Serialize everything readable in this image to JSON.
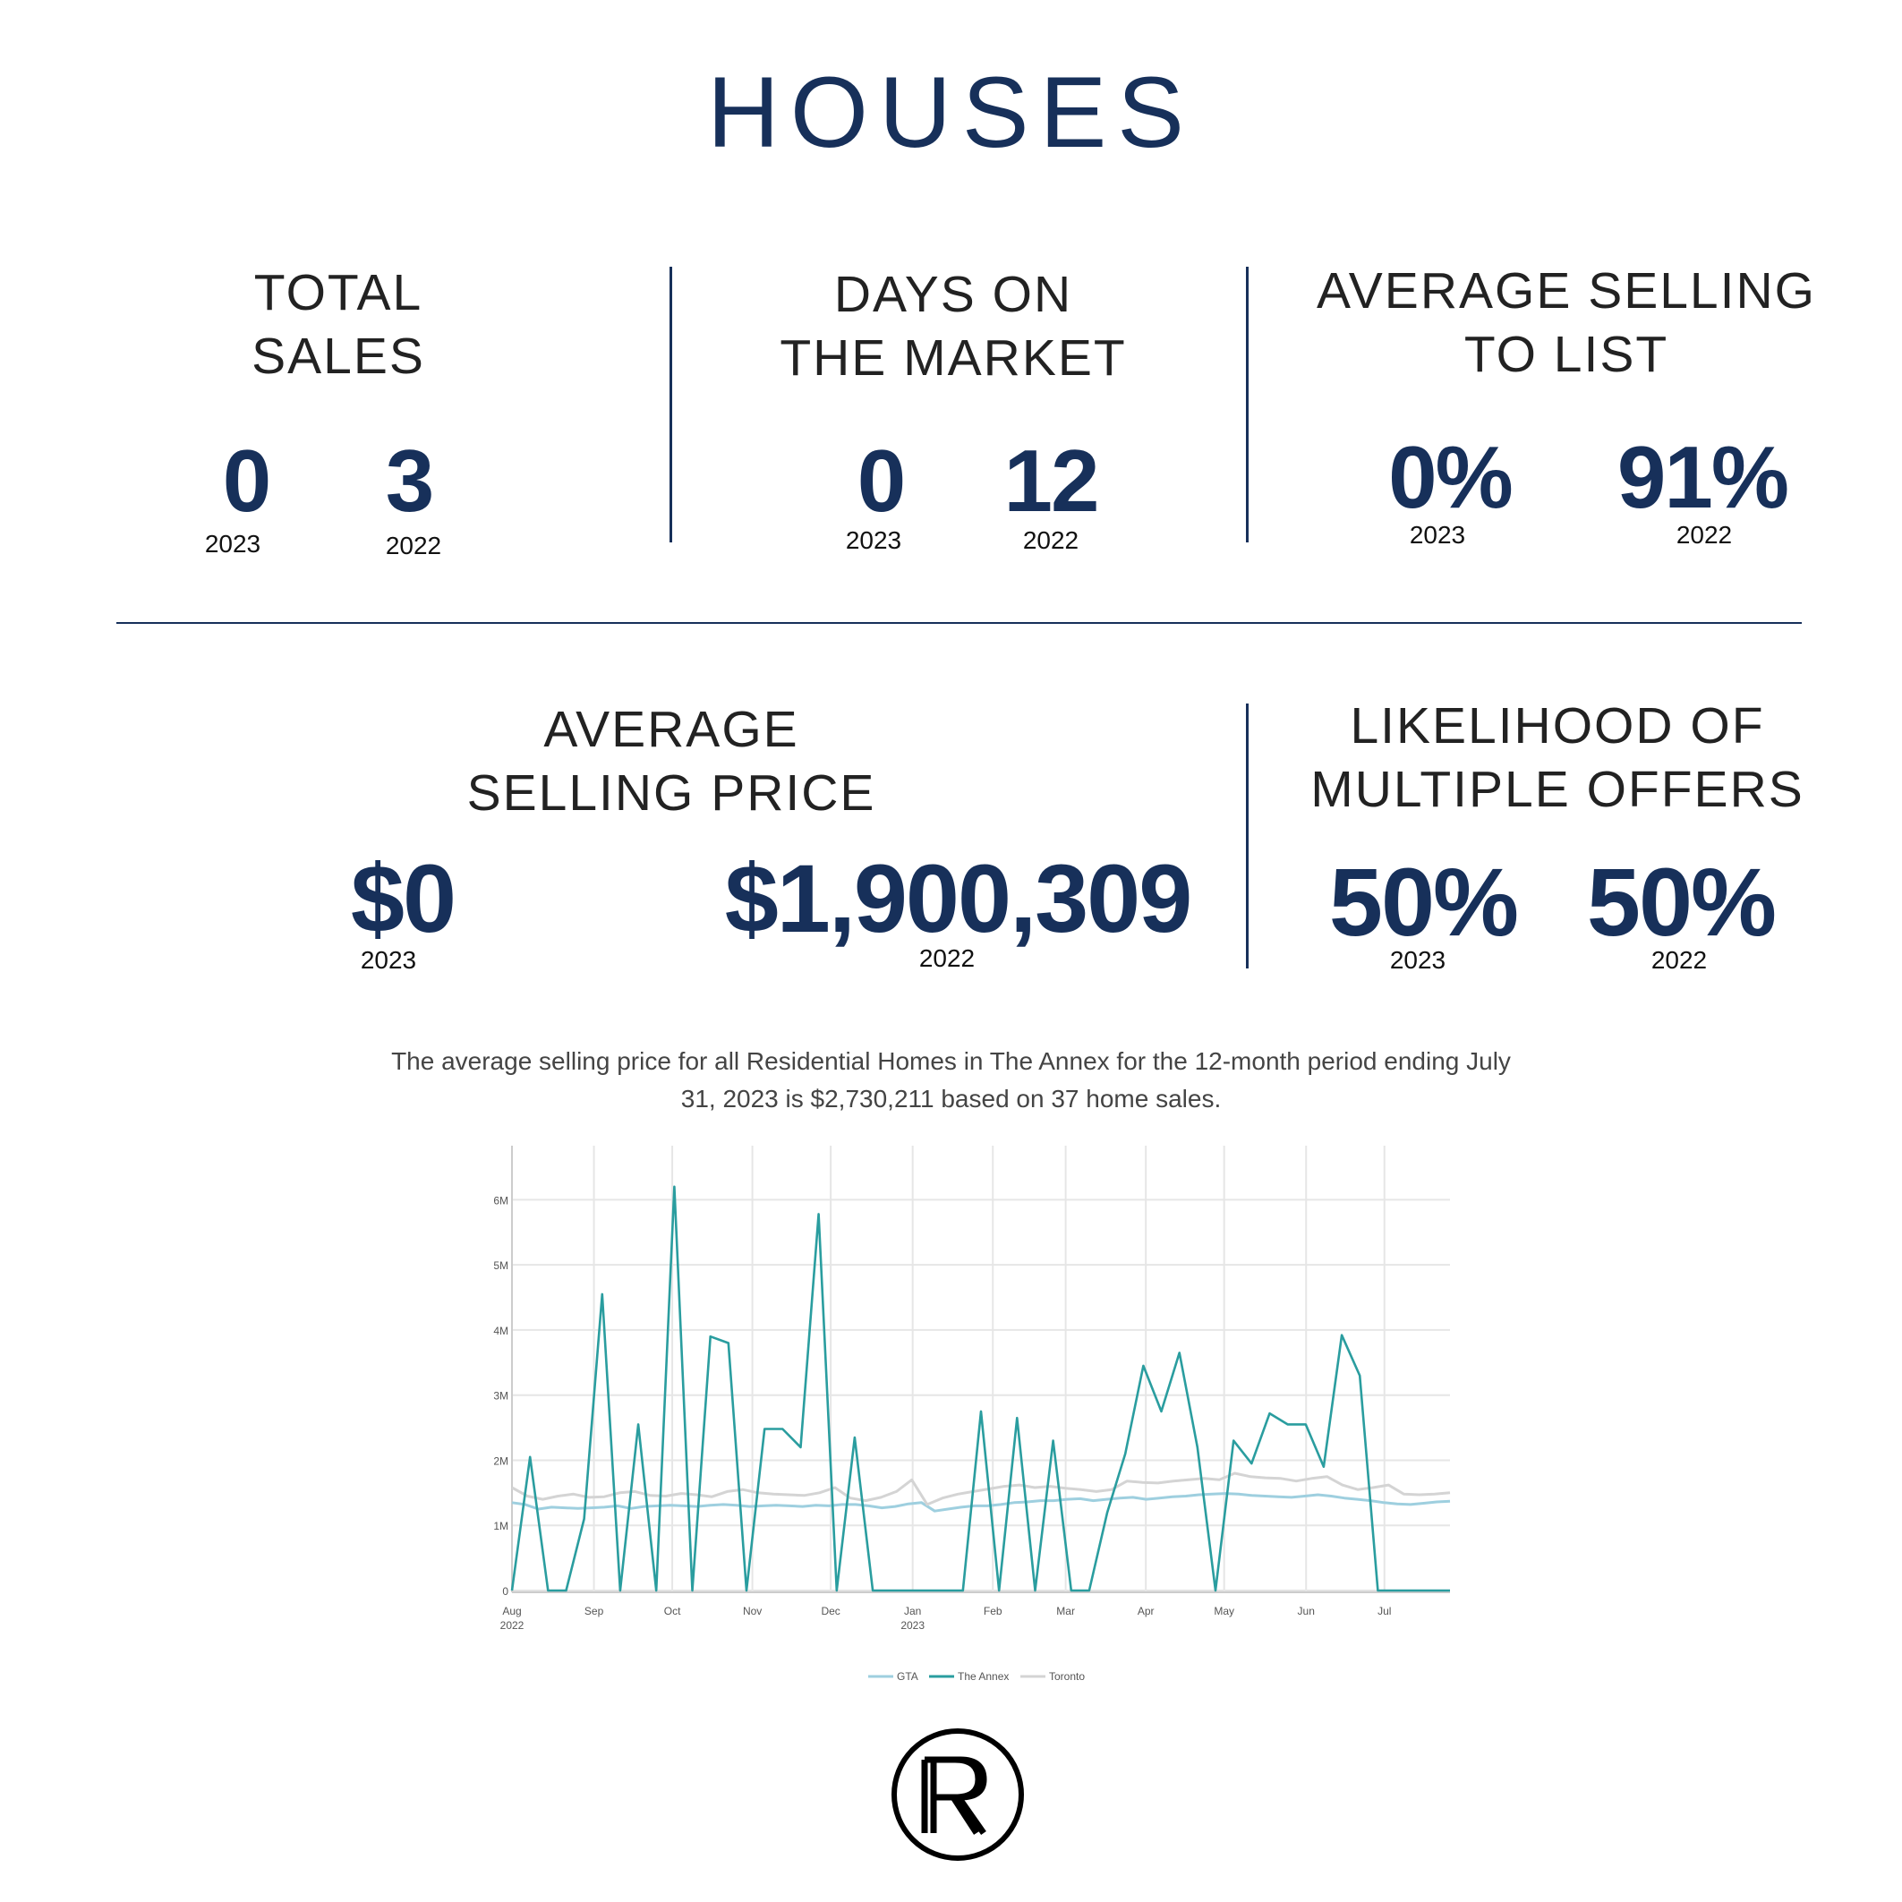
{
  "page_title": "HOUSES",
  "stats": {
    "total_sales": {
      "label": "TOTAL\nSALES",
      "v2023": "0",
      "v2022": "3",
      "y2023": "2023",
      "y2022": "2022"
    },
    "days_on_market": {
      "label": "DAYS ON\nTHE MARKET",
      "v2023": "0",
      "v2022": "12",
      "y2023": "2023",
      "y2022": "2022"
    },
    "selling_to_list": {
      "label": "AVERAGE SELLING\nTO LIST",
      "v2023": "0%",
      "v2022": "91%",
      "y2023": "2023",
      "y2022": "2022"
    },
    "avg_selling_price": {
      "label": "AVERAGE\nSELLING PRICE",
      "v2023": "$0",
      "v2022": "$1,900,309",
      "y2023": "2023",
      "y2022": "2022"
    },
    "multiple_offers": {
      "label": "LIKELIHOOD OF\nMULTIPLE OFFERS",
      "v2023": "50%",
      "v2022": "50%",
      "y2023": "2023",
      "y2022": "2022"
    }
  },
  "summary_text": "The average selling price for all Residential Homes in The Annex for the 12-month period ending July\n31, 2023 is $2,730,211 based on 37 home sales.",
  "chart_data": {
    "type": "line",
    "title": "",
    "xlabel": "",
    "ylabel": "",
    "ylim": [
      0,
      6.2
    ],
    "y_ticks": [
      {
        "value": 0,
        "label": "0"
      },
      {
        "value": 1,
        "label": "1M"
      },
      {
        "value": 2,
        "label": "2M"
      },
      {
        "value": 3,
        "label": "3M"
      },
      {
        "value": 4,
        "label": "4M"
      },
      {
        "value": 5,
        "label": "5M"
      },
      {
        "value": 6,
        "label": "6M"
      }
    ],
    "x_ticks": [
      {
        "value": 0,
        "label": "Aug",
        "sub": "2022"
      },
      {
        "value": 4.5,
        "label": "Sep",
        "sub": ""
      },
      {
        "value": 8.8,
        "label": "Oct",
        "sub": ""
      },
      {
        "value": 13.2,
        "label": "Nov",
        "sub": ""
      },
      {
        "value": 17.5,
        "label": "Dec",
        "sub": ""
      },
      {
        "value": 22,
        "label": "Jan",
        "sub": "2023"
      },
      {
        "value": 26.4,
        "label": "Feb",
        "sub": ""
      },
      {
        "value": 30.4,
        "label": "Mar",
        "sub": ""
      },
      {
        "value": 34.8,
        "label": "Apr",
        "sub": ""
      },
      {
        "value": 39.1,
        "label": "May",
        "sub": ""
      },
      {
        "value": 43.6,
        "label": "Jun",
        "sub": ""
      },
      {
        "value": 47.9,
        "label": "Jul",
        "sub": ""
      }
    ],
    "x_range": [
      0,
      51.5
    ],
    "grid": true,
    "legend_position": "bottom-center",
    "series": [
      {
        "name": "GTA",
        "color": "#9ecfdf",
        "values": [
          1.35,
          1.32,
          1.25,
          1.28,
          1.27,
          1.26,
          1.27,
          1.28,
          1.3,
          1.26,
          1.29,
          1.3,
          1.31,
          1.3,
          1.29,
          1.31,
          1.32,
          1.31,
          1.29,
          1.3,
          1.31,
          1.3,
          1.29,
          1.31,
          1.3,
          1.32,
          1.32,
          1.3,
          1.27,
          1.29,
          1.33,
          1.35,
          1.22,
          1.25,
          1.28,
          1.3,
          1.3,
          1.32,
          1.35,
          1.36,
          1.38,
          1.38,
          1.4,
          1.41,
          1.38,
          1.4,
          1.42,
          1.43,
          1.4,
          1.42,
          1.44,
          1.45,
          1.47,
          1.48,
          1.49,
          1.48,
          1.46,
          1.45,
          1.44,
          1.43,
          1.45,
          1.47,
          1.45,
          1.42,
          1.4,
          1.38,
          1.35,
          1.33,
          1.32,
          1.34,
          1.36,
          1.37
        ]
      },
      {
        "name": "The Annex",
        "color": "#2a9d9f",
        "values": [
          0,
          2.05,
          0,
          0,
          1.1,
          4.55,
          0,
          2.55,
          0,
          6.2,
          0,
          3.9,
          3.8,
          0,
          2.48,
          2.48,
          2.2,
          5.78,
          0,
          2.35,
          0,
          0,
          0,
          0,
          0,
          0,
          2.75,
          0,
          2.65,
          0,
          2.3,
          0,
          0,
          1.2,
          2.1,
          3.45,
          2.75,
          3.65,
          2.2,
          0,
          2.3,
          1.95,
          2.72,
          2.55,
          2.55,
          1.9,
          3.92,
          3.3,
          0,
          0,
          0,
          0,
          0
        ]
      },
      {
        "name": "Toronto",
        "color": "#d4d4d4",
        "values": [
          1.58,
          1.45,
          1.4,
          1.45,
          1.48,
          1.43,
          1.44,
          1.5,
          1.52,
          1.46,
          1.45,
          1.49,
          1.47,
          1.44,
          1.52,
          1.55,
          1.5,
          1.48,
          1.47,
          1.46,
          1.5,
          1.58,
          1.42,
          1.38,
          1.43,
          1.52,
          1.7,
          1.32,
          1.42,
          1.48,
          1.52,
          1.56,
          1.6,
          1.62,
          1.58,
          1.6,
          1.57,
          1.55,
          1.52,
          1.55,
          1.68,
          1.66,
          1.65,
          1.68,
          1.7,
          1.72,
          1.7,
          1.8,
          1.75,
          1.73,
          1.72,
          1.68,
          1.72,
          1.75,
          1.62,
          1.55,
          1.58,
          1.62,
          1.48,
          1.47,
          1.48,
          1.5
        ]
      }
    ]
  },
  "logo": {
    "name": "RR monogram"
  }
}
